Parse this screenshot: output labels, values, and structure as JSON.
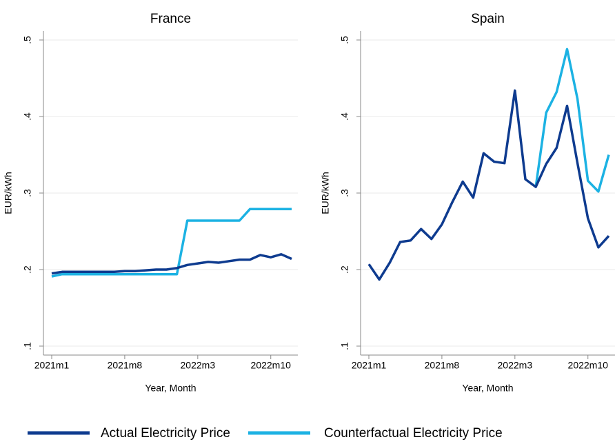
{
  "chart_data": [
    {
      "type": "line",
      "title": "France",
      "xlabel": "Year, Month",
      "ylabel": "EUR/kWh",
      "categories": [
        "2021m1",
        null,
        null,
        null,
        null,
        null,
        null,
        "2021m8",
        null,
        null,
        null,
        null,
        null,
        null,
        "2022m3",
        null,
        null,
        null,
        null,
        null,
        null,
        "2022m10",
        null,
        null
      ],
      "ylim": [
        0.1,
        0.5
      ],
      "yticks": [
        {
          "value": 0.1,
          "label": ".1"
        },
        {
          "value": 0.2,
          "label": ".2"
        },
        {
          "value": 0.3,
          "label": ".3"
        },
        {
          "value": 0.4,
          "label": ".4"
        },
        {
          "value": 0.5,
          "label": ".5"
        }
      ],
      "grid": true,
      "series": [
        {
          "name": "Actual Electricity Price",
          "color": "#0e3b8f",
          "values": [
            0.195,
            0.197,
            0.197,
            0.197,
            0.197,
            0.197,
            0.197,
            0.198,
            0.198,
            0.199,
            0.2,
            0.2,
            0.202,
            0.206,
            0.208,
            0.21,
            0.209,
            0.211,
            0.213,
            0.213,
            0.219,
            0.216,
            0.22,
            0.214
          ]
        },
        {
          "name": "Counterfactual Electricity Price",
          "color": "#1cb2e3",
          "values": [
            0.191,
            0.194,
            0.194,
            0.194,
            0.194,
            0.194,
            0.194,
            0.194,
            0.194,
            0.194,
            0.194,
            0.194,
            0.194,
            0.264,
            0.264,
            0.264,
            0.264,
            0.264,
            0.264,
            0.279,
            0.279,
            0.279,
            0.279,
            0.279
          ]
        }
      ]
    },
    {
      "type": "line",
      "title": "Spain",
      "xlabel": "Year, Month",
      "ylabel": "EUR/kWh",
      "categories": [
        "2021m1",
        null,
        null,
        null,
        null,
        null,
        null,
        "2021m8",
        null,
        null,
        null,
        null,
        null,
        null,
        "2022m3",
        null,
        null,
        null,
        null,
        null,
        null,
        "2022m10",
        null,
        null
      ],
      "ylim": [
        0.1,
        0.5
      ],
      "yticks": [
        {
          "value": 0.1,
          "label": ".1"
        },
        {
          "value": 0.2,
          "label": ".2"
        },
        {
          "value": 0.3,
          "label": ".3"
        },
        {
          "value": 0.4,
          "label": ".4"
        },
        {
          "value": 0.5,
          "label": ".5"
        }
      ],
      "grid": true,
      "series": [
        {
          "name": "Actual Electricity Price",
          "color": "#0e3b8f",
          "values": [
            0.207,
            0.187,
            0.209,
            0.236,
            0.238,
            0.253,
            0.24,
            0.259,
            0.288,
            0.315,
            0.294,
            0.352,
            0.341,
            0.339,
            0.434,
            0.318,
            0.308,
            0.338,
            0.359,
            0.414,
            0.339,
            0.267,
            0.229,
            0.244
          ]
        },
        {
          "name": "Counterfactual Electricity Price",
          "color": "#1cb2e3",
          "values": [
            null,
            null,
            null,
            null,
            null,
            null,
            null,
            null,
            null,
            null,
            null,
            null,
            null,
            null,
            null,
            null,
            0.308,
            0.405,
            0.432,
            0.488,
            0.423,
            0.316,
            0.302,
            0.35
          ]
        }
      ]
    }
  ]
}
